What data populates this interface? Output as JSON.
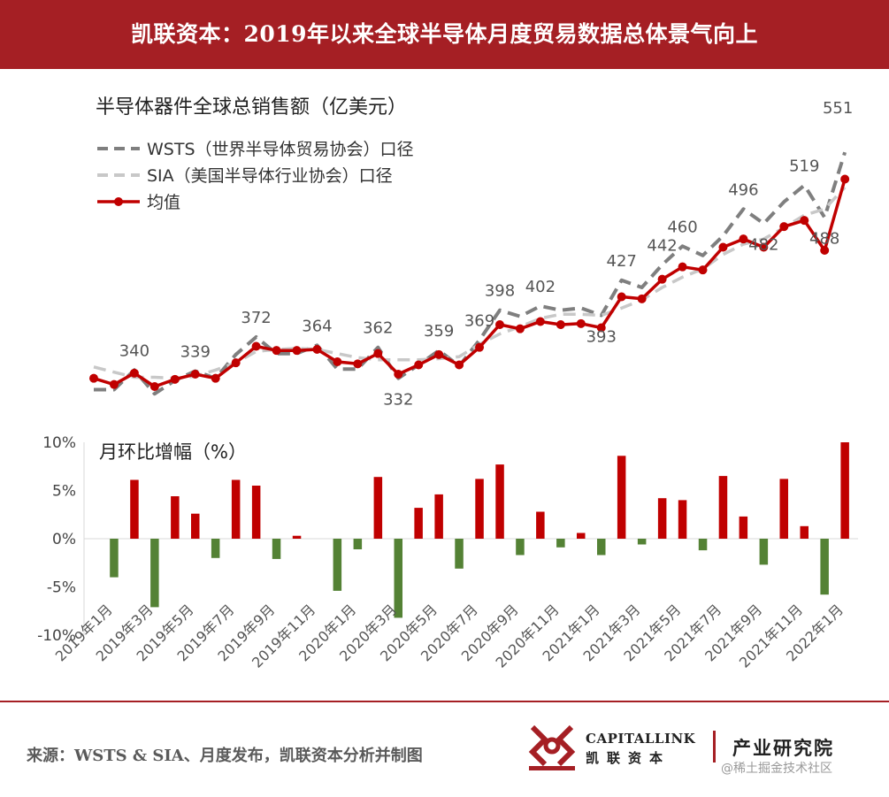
{
  "header": {
    "title": "凯联资本：2019年以来全球半导体月度贸易数据总体景气向上"
  },
  "footer": {
    "source": "来源：WSTS & SIA、月度发布，凯联资本分析并制图",
    "logo_en": "CAPITALLINK",
    "logo_cn": "凯联资本",
    "tagline": "产业研究院",
    "watermark": "@稀土掘金技术社区"
  },
  "colors": {
    "banner": "#a51f24",
    "wsts": "#7f7f7f",
    "sia": "#c8c8c8",
    "avg": "#c00000",
    "positive": "#c00000",
    "negative": "#548235"
  },
  "chart_data": [
    {
      "type": "line",
      "title": "半导体器件全球总销售额（亿美元）",
      "x": [
        "2019年1月",
        "2019年2月",
        "2019年3月",
        "2019年4月",
        "2019年5月",
        "2019年6月",
        "2019年7月",
        "2019年8月",
        "2019年9月",
        "2019年10月",
        "2019年11月",
        "2019年12月",
        "2020年1月",
        "2020年2月",
        "2020年3月",
        "2020年4月",
        "2020年5月",
        "2020年6月",
        "2020年7月",
        "2020年8月",
        "2020年9月",
        "2020年10月",
        "2020年11月",
        "2020年12月",
        "2021年1月",
        "2021年2月",
        "2021年3月",
        "2021年4月",
        "2021年5月",
        "2021年6月",
        "2021年7月",
        "2021年8月",
        "2021年9月",
        "2021年10月",
        "2021年11月",
        "2021年12月",
        "2022年1月",
        "2022年2月"
      ],
      "ylim": [
        300,
        570
      ],
      "series": [
        {
          "name": "WSTS（世界半导体贸易协会）口径",
          "style": "dashed",
          "values": [
            321,
            321,
            340,
            317,
            330,
            339,
            332,
            355,
            372,
            356,
            356,
            364,
            341,
            341,
            362,
            332,
            345,
            359,
            344,
            369,
            398,
            392,
            402,
            398,
            400,
            393,
            427,
            420,
            442,
            460,
            451,
            470,
            496,
            482,
            503,
            519,
            488,
            551
          ]
        },
        {
          "name": "SIA（美国半导体行业协会）口径",
          "style": "dashed",
          "values": [
            343,
            338,
            333,
            333,
            332,
            334,
            340,
            347,
            358,
            360,
            361,
            360,
            356,
            352,
            350,
            350,
            350,
            351,
            353,
            365,
            375,
            382,
            390,
            394,
            394,
            393,
            400,
            408,
            420,
            430,
            438,
            452,
            462,
            467,
            478,
            490,
            496,
            517
          ]
        },
        {
          "name": "均值",
          "style": "solid-marker",
          "values": [
            332,
            326,
            337,
            324,
            331,
            336,
            332,
            347,
            363,
            359,
            359,
            360,
            348,
            346,
            356,
            336,
            345,
            355,
            345,
            362,
            384,
            380,
            387,
            384,
            385,
            381,
            411,
            409,
            428,
            440,
            437,
            459,
            467,
            459,
            479,
            485,
            456,
            525
          ]
        }
      ],
      "data_labels": [
        {
          "index": 2,
          "value": "340"
        },
        {
          "index": 5,
          "value": "339"
        },
        {
          "index": 8,
          "value": "372"
        },
        {
          "index": 11,
          "value": "364"
        },
        {
          "index": 14,
          "value": "362"
        },
        {
          "index": 15,
          "value": "332"
        },
        {
          "index": 17,
          "value": "359"
        },
        {
          "index": 19,
          "value": "369"
        },
        {
          "index": 20,
          "value": "398"
        },
        {
          "index": 22,
          "value": "402"
        },
        {
          "index": 25,
          "value": "393"
        },
        {
          "index": 26,
          "value": "427"
        },
        {
          "index": 28,
          "value": "442"
        },
        {
          "index": 29,
          "value": "460"
        },
        {
          "index": 32,
          "value": "496"
        },
        {
          "index": 33,
          "value": "482"
        },
        {
          "index": 35,
          "value": "519"
        },
        {
          "index": 36,
          "value": "488"
        },
        {
          "index": 37,
          "value": "551"
        }
      ]
    },
    {
      "type": "bar",
      "title": "月环比增幅（%）",
      "categories": [
        "2019年1月",
        "2019年2月",
        "2019年3月",
        "2019年4月",
        "2019年5月",
        "2019年6月",
        "2019年7月",
        "2019年8月",
        "2019年9月",
        "2019年10月",
        "2019年11月",
        "2019年12月",
        "2020年1月",
        "2020年2月",
        "2020年3月",
        "2020年4月",
        "2020年5月",
        "2020年6月",
        "2020年7月",
        "2020年8月",
        "2020年9月",
        "2020年10月",
        "2020年11月",
        "2020年12月",
        "2021年1月",
        "2021年2月",
        "2021年3月",
        "2021年4月",
        "2021年5月",
        "2021年6月",
        "2021年7月",
        "2021年8月",
        "2021年9月",
        "2021年10月",
        "2021年11月",
        "2021年12月",
        "2022年1月",
        "2022年2月"
      ],
      "values": [
        0,
        -4.0,
        6.1,
        -7.1,
        4.4,
        2.6,
        -2.0,
        6.1,
        5.5,
        -2.1,
        0.3,
        0,
        -5.4,
        -1.1,
        6.4,
        -8.2,
        3.2,
        4.6,
        -3.1,
        6.2,
        7.7,
        -1.7,
        2.8,
        -0.9,
        0.6,
        -1.7,
        8.6,
        -0.6,
        4.2,
        4.0,
        -1.2,
        6.5,
        2.3,
        -2.7,
        6.2,
        1.3,
        -5.8,
        10.0
      ],
      "ylim": [
        -10,
        10
      ],
      "yticks": [
        "10%",
        "5%",
        "0%",
        "-5%",
        "-10%"
      ],
      "xtick_labels": [
        "2019年1月",
        "2019年3月",
        "2019年5月",
        "2019年7月",
        "2019年9月",
        "2019年11月",
        "2020年1月",
        "2020年3月",
        "2020年5月",
        "2020年7月",
        "2020年9月",
        "2020年11月",
        "2021年1月",
        "2021年3月",
        "2021年5月",
        "2021年7月",
        "2021年9月",
        "2021年11月",
        "2022年1月"
      ]
    }
  ]
}
